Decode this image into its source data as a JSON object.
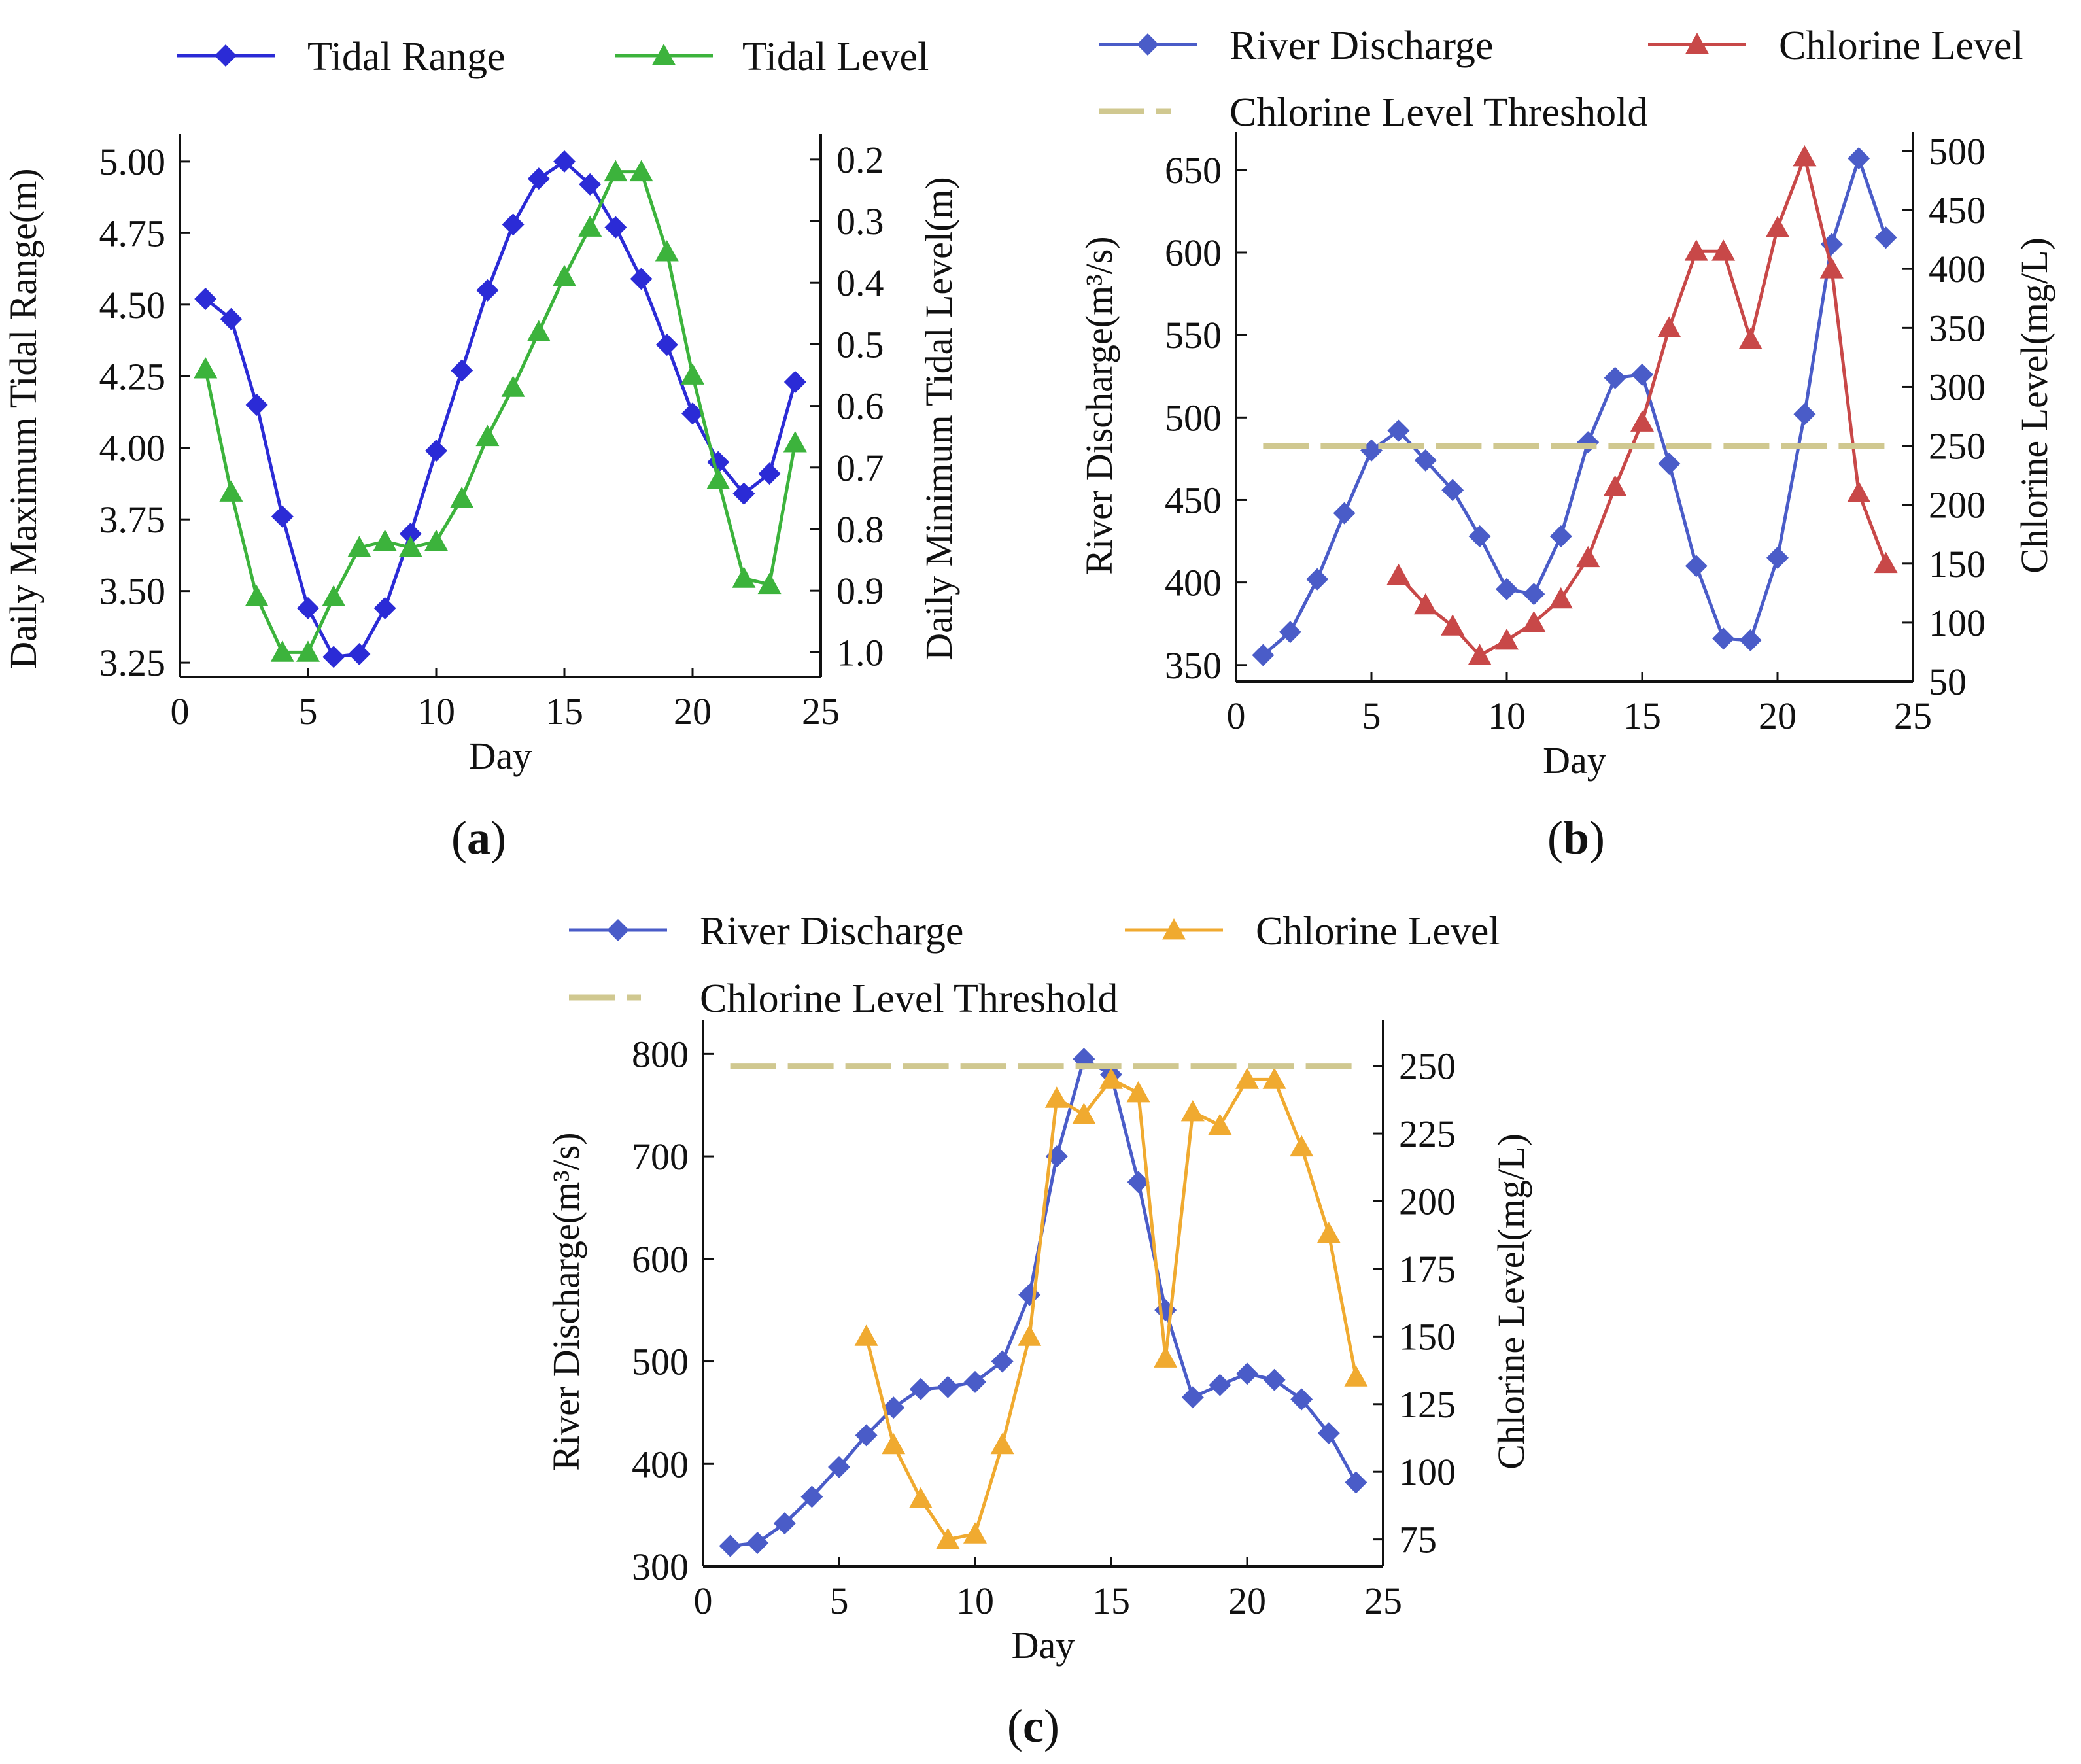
{
  "figure": {
    "panels": [
      "a",
      "b",
      "c"
    ]
  },
  "chart_data": [
    {
      "panel": "a",
      "type": "line",
      "xlabel": "Day",
      "xlim": [
        0,
        25
      ],
      "xticks": [
        0,
        5,
        10,
        15,
        20,
        25
      ],
      "left_axis": {
        "label": "Daily Maximum Tidal Range(m)",
        "ylim": [
          3.2,
          5.05
        ],
        "ticks": [
          "3.25",
          "3.50",
          "3.75",
          "4.00",
          "4.25",
          "4.50",
          "4.75",
          "5.00"
        ],
        "tick_values": [
          3.25,
          3.5,
          3.75,
          4.0,
          4.25,
          4.5,
          4.75,
          5.0
        ]
      },
      "right_axis": {
        "label": "Daily Minimum Tidal Level(m)",
        "inverted": true,
        "ylim": [
          0.18,
          1.04
        ],
        "ticks": [
          "0.2",
          "0.3",
          "0.4",
          "0.5",
          "0.6",
          "0.7",
          "0.8",
          "0.9",
          "1.0"
        ],
        "tick_values": [
          0.2,
          0.3,
          0.4,
          0.5,
          0.6,
          0.7,
          0.8,
          0.9,
          1.0
        ]
      },
      "series": [
        {
          "name": "Tidal Range",
          "axis": "left",
          "marker": "diamond",
          "color": "#2b2bd6",
          "x": [
            1,
            2,
            3,
            4,
            5,
            6,
            7,
            8,
            9,
            10,
            11,
            12,
            13,
            14,
            15,
            16,
            17,
            18,
            19,
            20,
            21,
            22,
            23,
            24
          ],
          "values": [
            4.52,
            4.45,
            4.15,
            3.76,
            3.44,
            3.27,
            3.28,
            3.44,
            3.7,
            3.99,
            4.27,
            4.55,
            4.78,
            4.94,
            5.0,
            4.92,
            4.77,
            4.59,
            4.36,
            4.12,
            3.95,
            3.84,
            3.91,
            4.23
          ]
        },
        {
          "name": "Tidal Level",
          "axis": "right",
          "marker": "triangle",
          "color": "#3cb33c",
          "x": [
            1,
            2,
            3,
            4,
            5,
            6,
            7,
            8,
            9,
            10,
            11,
            12,
            13,
            14,
            15,
            16,
            17,
            18,
            19,
            20,
            21,
            22,
            23,
            24
          ],
          "values": [
            0.54,
            0.74,
            0.91,
            1.0,
            1.0,
            0.91,
            0.83,
            0.82,
            0.83,
            0.82,
            0.75,
            0.65,
            0.57,
            0.48,
            0.39,
            0.31,
            0.22,
            0.22,
            0.35,
            0.55,
            0.72,
            0.88,
            0.89,
            0.66
          ]
        }
      ]
    },
    {
      "panel": "b",
      "type": "line",
      "xlabel": "Day",
      "xlim": [
        0,
        25
      ],
      "xticks": [
        0,
        5,
        10,
        15,
        20,
        25
      ],
      "left_axis": {
        "label": "River Discharge(m³/s)",
        "ylim": [
          340,
          665
        ],
        "ticks": [
          "350",
          "400",
          "450",
          "500",
          "550",
          "600",
          "650"
        ],
        "tick_values": [
          350,
          400,
          450,
          500,
          550,
          600,
          650
        ]
      },
      "right_axis": {
        "label": "Chlorine Level(mg/L)",
        "ylim": [
          50,
          505
        ],
        "ticks": [
          "50",
          "100",
          "150",
          "200",
          "250",
          "300",
          "350",
          "400",
          "450",
          "500"
        ],
        "tick_values": [
          50,
          100,
          150,
          200,
          250,
          300,
          350,
          400,
          450,
          500
        ]
      },
      "series": [
        {
          "name": "River Discharge",
          "axis": "left",
          "marker": "diamond",
          "color": "#4a5cc8",
          "x": [
            1,
            2,
            3,
            4,
            5,
            6,
            7,
            8,
            9,
            10,
            11,
            12,
            13,
            14,
            15,
            16,
            17,
            18,
            19,
            20,
            21,
            22,
            23,
            24
          ],
          "values": [
            356,
            370,
            402,
            442,
            480,
            492,
            474,
            456,
            428,
            396,
            393,
            428,
            485,
            524,
            526,
            472,
            410,
            366,
            365,
            415,
            502,
            605,
            657,
            609
          ]
        },
        {
          "name": "Chlorine Level",
          "axis": "right",
          "marker": "triangle",
          "color": "#c84848",
          "x": [
            6,
            7,
            8,
            9,
            10,
            11,
            12,
            13,
            14,
            15,
            16,
            17,
            18,
            19,
            20,
            21,
            22,
            23,
            24
          ],
          "values": [
            140,
            115,
            97,
            72,
            85,
            100,
            120,
            155,
            215,
            270,
            350,
            415,
            415,
            340,
            435,
            495,
            400,
            210,
            150
          ]
        },
        {
          "name": "Chlorine Level Threshold",
          "axis": "right",
          "style": "dashed",
          "color": "#d0c890",
          "x": [
            1,
            24
          ],
          "values": [
            250,
            250
          ]
        }
      ]
    },
    {
      "panel": "c",
      "type": "line",
      "xlabel": "Day",
      "xlim": [
        0,
        25
      ],
      "xticks": [
        0,
        5,
        10,
        15,
        20,
        25
      ],
      "left_axis": {
        "label": "River Discharge(m³/s)",
        "ylim": [
          300,
          820
        ],
        "ticks": [
          "300",
          "400",
          "500",
          "600",
          "700",
          "800"
        ],
        "tick_values": [
          300,
          400,
          500,
          600,
          700,
          800
        ]
      },
      "right_axis": {
        "label": "Chlorine Level(mg/L)",
        "ylim": [
          65,
          262
        ],
        "ticks": [
          "75",
          "100",
          "125",
          "150",
          "175",
          "200",
          "225",
          "250"
        ],
        "tick_values": [
          75,
          100,
          125,
          150,
          175,
          200,
          225,
          250
        ]
      },
      "series": [
        {
          "name": "River Discharge",
          "axis": "left",
          "marker": "diamond",
          "color": "#4a5cc8",
          "x": [
            1,
            2,
            3,
            4,
            5,
            6,
            7,
            8,
            9,
            10,
            11,
            12,
            13,
            14,
            15,
            16,
            17,
            18,
            19,
            20,
            21,
            22,
            23,
            24
          ],
          "values": [
            320,
            323,
            342,
            368,
            397,
            428,
            455,
            473,
            475,
            480,
            500,
            565,
            700,
            795,
            780,
            675,
            550,
            465,
            477,
            488,
            482,
            463,
            430,
            382
          ]
        },
        {
          "name": "Chlorine Level",
          "axis": "right",
          "marker": "triangle",
          "color": "#f0aa30",
          "x": [
            6,
            7,
            8,
            9,
            10,
            11,
            12,
            13,
            14,
            15,
            16,
            17,
            18,
            19,
            20,
            21,
            22,
            23,
            24
          ],
          "values": [
            150,
            110,
            90,
            75,
            77,
            110,
            150,
            238,
            232,
            245,
            240,
            142,
            233,
            228,
            245,
            245,
            220,
            188,
            135
          ]
        },
        {
          "name": "Chlorine Level Threshold",
          "axis": "right",
          "style": "dashed",
          "color": "#d0c890",
          "x": [
            1,
            24
          ],
          "values": [
            250,
            250
          ]
        }
      ]
    }
  ]
}
